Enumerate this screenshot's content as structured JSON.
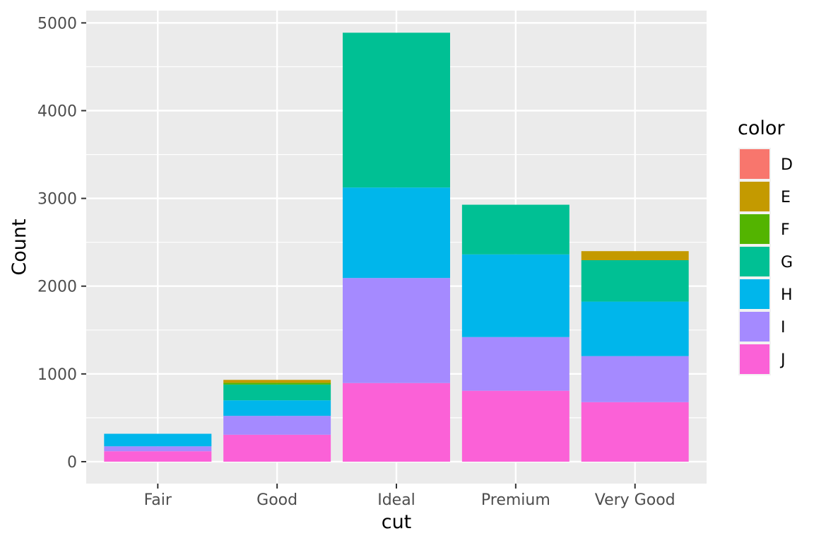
{
  "chart_data": {
    "type": "bar",
    "stacked": true,
    "title": "",
    "xlabel": "cut",
    "ylabel": "Count",
    "ylim": [
      -250,
      5140
    ],
    "yticks": [
      0,
      1000,
      2000,
      3000,
      4000,
      5000
    ],
    "ytick_labels": [
      "0",
      "1000",
      "2000",
      "3000",
      "4000",
      "5000"
    ],
    "grid": true,
    "legend_position": "right",
    "categories": [
      "Fair",
      "Good",
      "Ideal",
      "Premium",
      "Very Good"
    ],
    "legend": {
      "title": "color",
      "entries": [
        {
          "label": "D",
          "color": "#F8766D"
        },
        {
          "label": "E",
          "color": "#C49A00"
        },
        {
          "label": "F",
          "color": "#53B400"
        },
        {
          "label": "G",
          "color": "#00C094"
        },
        {
          "label": "H",
          "color": "#00B6EB"
        },
        {
          "label": "I",
          "color": "#A58AFF"
        },
        {
          "label": "J",
          "color": "#FB61D7"
        }
      ]
    },
    "series": [
      {
        "name": "J",
        "color": "#FB61D7",
        "values": [
          119,
          307,
          896,
          808,
          678
        ]
      },
      {
        "name": "I",
        "color": "#A58AFF",
        "values": [
          56,
          215,
          1197,
          612,
          525
        ]
      },
      {
        "name": "H",
        "color": "#00B6EB",
        "values": [
          143,
          177,
          1031,
          942,
          621
        ]
      },
      {
        "name": "G",
        "color": "#00C094",
        "values": [
          0,
          180,
          1764,
          566,
          472
        ]
      },
      {
        "name": "F",
        "color": "#53B400",
        "values": [
          0,
          20,
          0,
          0,
          0
        ]
      },
      {
        "name": "E",
        "color": "#C49A00",
        "values": [
          0,
          33,
          0,
          0,
          103
        ]
      },
      {
        "name": "D",
        "color": "#F8766D",
        "values": [
          0,
          0,
          0,
          0,
          0
        ]
      }
    ]
  }
}
